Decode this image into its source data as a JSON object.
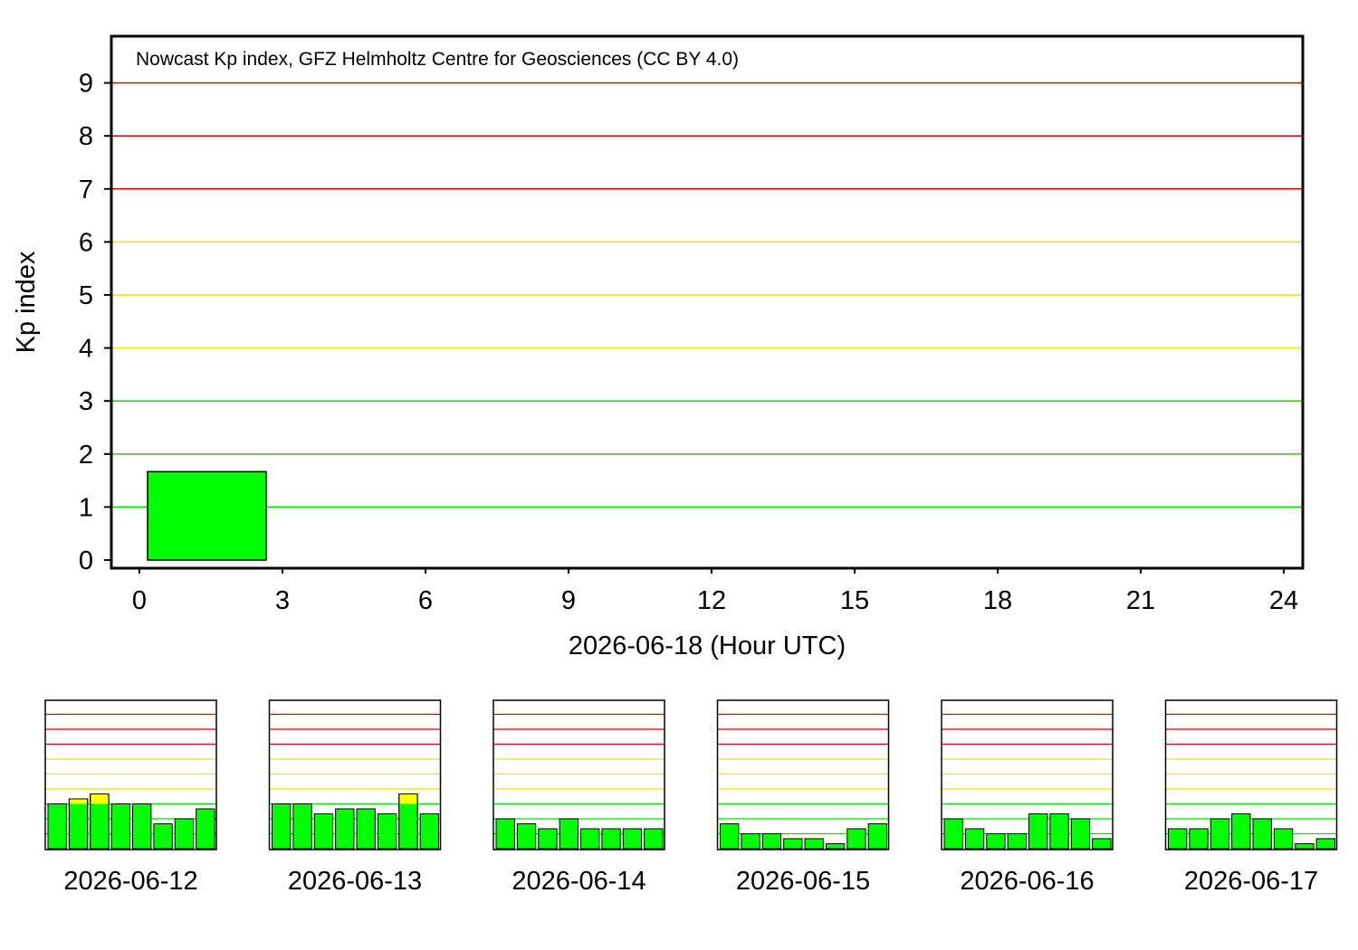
{
  "colors": {
    "quiet": "#00ff00",
    "active": "#ffff00",
    "storm": "#ff0000",
    "grid_green": "#00dd00",
    "grid_yellow": "#e8e800",
    "grid_red": "#dd0000"
  },
  "chart_data": [
    {
      "type": "bar",
      "annotation": "Nowcast Kp index, GFZ Helmholtz Centre for Geosciences (CC BY 4.0)",
      "xlabel": "2026-06-18 (Hour UTC)",
      "ylabel": "Kp index",
      "xlim": [
        0,
        24
      ],
      "ylim": [
        0,
        9
      ],
      "x_ticks": [
        "0",
        "3",
        "6",
        "9",
        "12",
        "15",
        "18",
        "21",
        "24"
      ],
      "y_ticks": [
        "0",
        "1",
        "2",
        "3",
        "4",
        "5",
        "6",
        "7",
        "8",
        "9"
      ],
      "bars": [
        {
          "start": 0,
          "end": 3,
          "value": 1.667
        }
      ]
    },
    {
      "type": "bar",
      "date": "2026-06-12",
      "ylim": [
        0,
        9
      ],
      "values": [
        3.0,
        3.333,
        3.667,
        3.0,
        3.0,
        1.667,
        2.0,
        2.667
      ]
    },
    {
      "type": "bar",
      "date": "2026-06-13",
      "ylim": [
        0,
        9
      ],
      "values": [
        3.0,
        3.0,
        2.333,
        2.667,
        2.667,
        2.333,
        3.667,
        2.333
      ]
    },
    {
      "type": "bar",
      "date": "2026-06-14",
      "ylim": [
        0,
        9
      ],
      "values": [
        2.0,
        1.667,
        1.333,
        2.0,
        1.333,
        1.333,
        1.333,
        1.333
      ]
    },
    {
      "type": "bar",
      "date": "2026-06-15",
      "ylim": [
        0,
        9
      ],
      "values": [
        1.667,
        1.0,
        1.0,
        0.667,
        0.667,
        0.333,
        1.333,
        1.667
      ]
    },
    {
      "type": "bar",
      "date": "2026-06-16",
      "ylim": [
        0,
        9
      ],
      "values": [
        2.0,
        1.333,
        1.0,
        1.0,
        2.333,
        2.333,
        2.0,
        0.667
      ]
    },
    {
      "type": "bar",
      "date": "2026-06-17",
      "ylim": [
        0,
        9
      ],
      "values": [
        1.333,
        1.333,
        2.0,
        2.333,
        2.0,
        1.333,
        0.333,
        0.667
      ]
    }
  ]
}
